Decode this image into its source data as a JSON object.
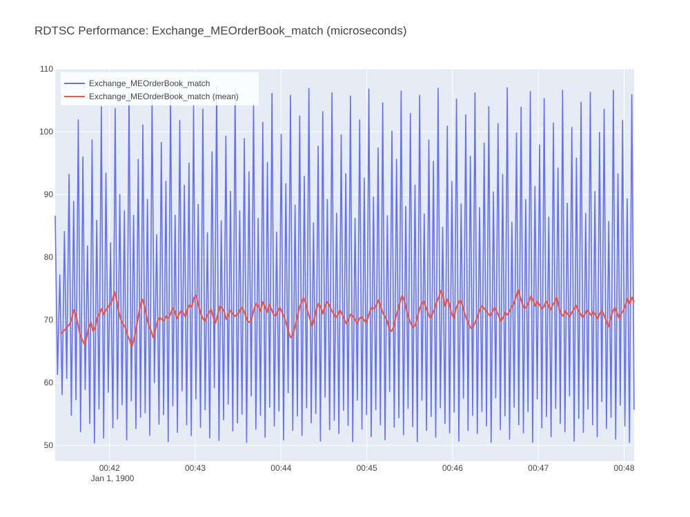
{
  "chart_data": {
    "type": "line",
    "title": "RDTSC Performance: Exchange_MEOrderBook_match (microseconds)",
    "xlabel": "",
    "ylabel": "",
    "x_axis_type": "date",
    "x_range": [
      "1900-01-01T00:41:22",
      "1900-01-01T00:48:07"
    ],
    "y_range": [
      47.5,
      110
    ],
    "y_ticks": [
      50,
      60,
      70,
      80,
      90,
      100,
      110
    ],
    "x_ticks": [
      {
        "t": "1900-01-01T00:42:00",
        "label": "00:42"
      },
      {
        "t": "1900-01-01T00:43:00",
        "label": "00:43"
      },
      {
        "t": "1900-01-01T00:44:00",
        "label": "00:44"
      },
      {
        "t": "1900-01-01T00:45:00",
        "label": "00:45"
      },
      {
        "t": "1900-01-01T00:46:00",
        "label": "00:46"
      },
      {
        "t": "1900-01-01T00:47:00",
        "label": "00:47"
      },
      {
        "t": "1900-01-01T00:48:00",
        "label": "00:48"
      }
    ],
    "x_tick_sublabel": "Jan 1, 1900",
    "grid": true,
    "legend_position": "top-left",
    "series": [
      {
        "name": "Exchange_MEOrderBook_match",
        "color": "#636efa",
        "style": "raw",
        "start": "1900-01-01T00:41:22",
        "end": "1900-01-01T00:48:07",
        "values": [
          86.6,
          61.3,
          77.2,
          58.1,
          84.1,
          60.7,
          93.2,
          54.8,
          88.9,
          57.3,
          101.9,
          52.2,
          96.0,
          58.9,
          81.8,
          53.5,
          98.7,
          50.4,
          85.9,
          55.8,
          104.0,
          51.2,
          93.4,
          58.5,
          82.3,
          52.8,
          103.7,
          54.2,
          90.0,
          56.5,
          87.4,
          50.9,
          106.1,
          57.1,
          86.7,
          52.7,
          95.6,
          54.5,
          101.1,
          55.2,
          89.2,
          51.6,
          105.7,
          60.0,
          83.6,
          53.4,
          98.3,
          54.9,
          92.1,
          50.6,
          106.6,
          56.3,
          86.7,
          52.1,
          101.8,
          58.7,
          91.5,
          53.3,
          95.0,
          51.6,
          104.2,
          57.4,
          88.4,
          52.9,
          103.6,
          55.7,
          83.9,
          51.2,
          96.8,
          59.2,
          107.2,
          50.8,
          85.8,
          54.1,
          99.3,
          56.6,
          90.5,
          52.3,
          106.8,
          53.6,
          87.4,
          55.0,
          98.9,
          50.5,
          93.6,
          57.9,
          104.4,
          52.6,
          86.2,
          54.8,
          101.5,
          51.3,
          95.1,
          56.1,
          106.1,
          53.1,
          84.0,
          55.5,
          99.6,
          50.9,
          91.7,
          58.4,
          105.8,
          52.4,
          88.3,
          54.7,
          102.5,
          51.6,
          92.9,
          56.0,
          106.9,
          53.6,
          85.5,
          55.1,
          97.7,
          50.7,
          103.2,
          57.7,
          89.2,
          52.5,
          106.2,
          54.0,
          87.0,
          51.9,
          99.5,
          55.6,
          93.3,
          53.2,
          105.7,
          50.6,
          86.2,
          57.2,
          101.9,
          52.6,
          92.6,
          54.9,
          106.8,
          51.4,
          89.6,
          55.7,
          97.4,
          53.3,
          104.6,
          50.9,
          86.6,
          58.6,
          100.1,
          52.9,
          95.6,
          54.4,
          106.5,
          51.7,
          88.1,
          55.9,
          102.9,
          53.0,
          91.5,
          50.6,
          105.8,
          57.2,
          86.9,
          52.4,
          98.7,
          54.6,
          95.3,
          51.3,
          106.9,
          56.0,
          84.8,
          53.5,
          100.9,
          52.0,
          92.1,
          55.3,
          105.2,
          50.7,
          88.5,
          57.5,
          102.7,
          52.4,
          96.1,
          54.8,
          106.2,
          51.9,
          87.9,
          55.4,
          98.2,
          53.1,
          104.0,
          50.5,
          90.4,
          57.6,
          101.3,
          52.5,
          93.2,
          54.7,
          107.0,
          51.0,
          85.6,
          56.1,
          99.8,
          53.3,
          103.9,
          52.0,
          89.2,
          55.4,
          106.4,
          50.5,
          91.3,
          57.4,
          97.9,
          52.8,
          105.3,
          54.6,
          86.4,
          51.4,
          101.4,
          55.9,
          94.2,
          53.5,
          106.6,
          52.2,
          88.6,
          57.9,
          100.7,
          50.7,
          95.8,
          54.3,
          104.7,
          52.1,
          87.0,
          55.8,
          106.3,
          53.3,
          90.5,
          51.4,
          99.9,
          57.0,
          103.6,
          52.7,
          85.7,
          54.5,
          106.6,
          51.0,
          93.3,
          56.4,
          101.8,
          53.1,
          89.3,
          50.5,
          105.9,
          55.7
        ]
      },
      {
        "name": "Exchange_MEOrderBook_match (mean)",
        "color": "#ef553b",
        "style": "line",
        "start": "1900-01-01T00:41:26",
        "end": "1900-01-01T00:48:07",
        "values": [
          67.8,
          68.2,
          68.5,
          68.9,
          69.3,
          70.1,
          71.6,
          70.8,
          69.2,
          67.5,
          66.8,
          66.1,
          67.3,
          68.9,
          69.6,
          68.2,
          68.8,
          70.4,
          71.0,
          71.8,
          70.9,
          71.6,
          72.1,
          72.5,
          73.2,
          74.5,
          73.1,
          71.2,
          70.0,
          69.3,
          68.8,
          67.6,
          66.8,
          65.7,
          66.9,
          68.6,
          70.5,
          72.4,
          73.3,
          72.1,
          70.4,
          69.0,
          68.3,
          67.2,
          68.5,
          69.8,
          70.4,
          70.1,
          69.9,
          70.6,
          70.3,
          70.9,
          71.9,
          71.4,
          70.2,
          70.9,
          71.5,
          71.1,
          70.5,
          71.8,
          72.4,
          72.1,
          73.6,
          73.9,
          72.4,
          71.2,
          70.3,
          69.8,
          70.6,
          71.2,
          71.7,
          70.4,
          69.5,
          70.8,
          72.2,
          71.9,
          71.4,
          70.1,
          70.8,
          71.5,
          71.0,
          70.6,
          70.8,
          71.2,
          72.0,
          71.6,
          70.7,
          69.8,
          69.6,
          70.4,
          71.8,
          72.6,
          72.2,
          71.4,
          72.9,
          72.1,
          71.2,
          72.5,
          71.8,
          70.9,
          70.6,
          71.4,
          72.0,
          71.2,
          70.5,
          69.4,
          68.1,
          67.2,
          67.6,
          68.8,
          70.4,
          71.8,
          72.8,
          73.5,
          72.7,
          71.3,
          70.2,
          69.0,
          70.1,
          71.7,
          72.6,
          72.1,
          71.0,
          72.2,
          72.9,
          72.4,
          71.6,
          71.0,
          70.4,
          70.8,
          71.6,
          70.9,
          70.1,
          69.4,
          70.2,
          70.9,
          70.6,
          70.1,
          69.4,
          70.2,
          70.5,
          70.1,
          69.6,
          70.3,
          71.5,
          72.0,
          71.8,
          72.4,
          73.2,
          72.1,
          71.1,
          70.5,
          69.8,
          68.5,
          68.2,
          68.9,
          70.5,
          71.6,
          72.9,
          73.9,
          73.1,
          71.6,
          70.3,
          69.4,
          68.8,
          69.1,
          70.4,
          71.7,
          72.6,
          73.0,
          72.0,
          71.1,
          70.3,
          70.9,
          71.7,
          72.8,
          73.6,
          74.7,
          73.8,
          72.2,
          73.3,
          72.5,
          71.0,
          70.3,
          71.8,
          72.6,
          73.2,
          72.4,
          71.1,
          70.1,
          69.3,
          68.7,
          68.9,
          69.6,
          70.5,
          71.5,
          72.2,
          71.9,
          71.5,
          71.0,
          70.6,
          71.3,
          72.0,
          71.4,
          70.6,
          69.8,
          70.4,
          71.2,
          70.8,
          71.4,
          72.1,
          72.6,
          73.7,
          74.8,
          73.6,
          72.5,
          71.8,
          72.2,
          72.9,
          73.8,
          73.1,
          72.2,
          72.9,
          72.4,
          71.8,
          72.1,
          73.0,
          72.4,
          71.6,
          72.3,
          72.9,
          73.6,
          71.9,
          71.0,
          70.6,
          71.4,
          71.0,
          70.5,
          71.2,
          71.8,
          72.3,
          71.5,
          71.0,
          70.4,
          70.9,
          71.6,
          71.2,
          70.7,
          71.3,
          70.8,
          70.2,
          71.0,
          71.5,
          70.8,
          69.8,
          68.9,
          70.2,
          71.3,
          72.0,
          71.2,
          70.3,
          71.0,
          71.5,
          72.4,
          73.4,
          72.6,
          73.6,
          72.9
        ]
      }
    ]
  }
}
